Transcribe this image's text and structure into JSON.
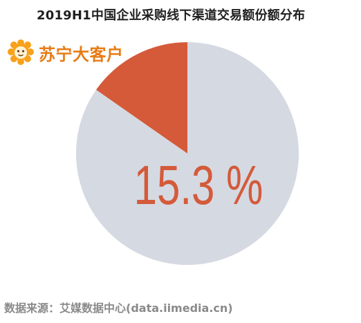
{
  "header": {
    "title": "2019H1中国企业采购线下渠道交易额份额分布"
  },
  "brand": {
    "name": "苏宁大客户",
    "icon": "lion-icon",
    "color": "#e77b14"
  },
  "chart_data": {
    "type": "pie",
    "title": "2019H1中国企业采购线下渠道交易额份额分布",
    "slices": [
      {
        "name": "",
        "value": 15.3,
        "color": "#d45a3a"
      },
      {
        "name": "",
        "value": 84.7,
        "color": "#d5d9e2"
      }
    ],
    "highlight_label": "15.3 %",
    "highlight_color": "#d45a3a"
  },
  "footer": {
    "source": "数据来源：艾媒数据中心(data.iimedia.cn)"
  }
}
